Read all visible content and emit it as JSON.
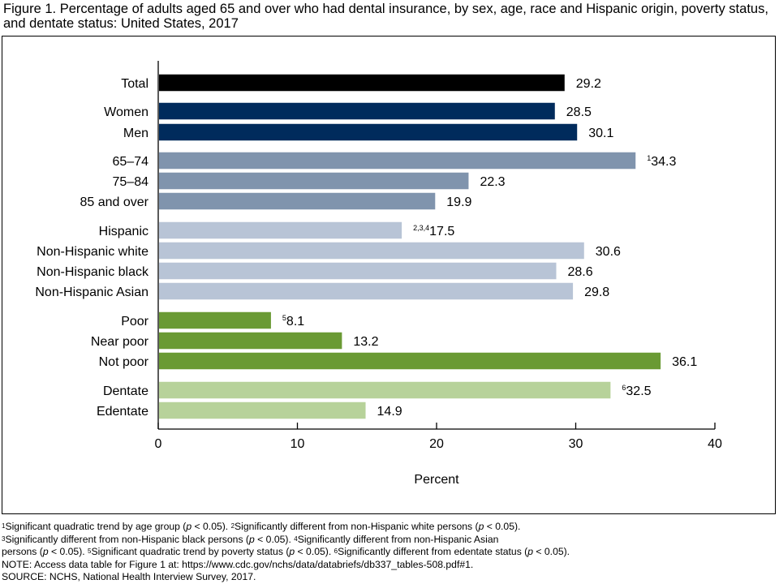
{
  "figure_title": "Figure 1. Percentage of adults aged 65 and over who had dental insurance, by sex, age, race and Hispanic origin, poverty status, and dentate status: United States, 2017",
  "footnotes": {
    "line1": [
      {
        "sup": "1",
        "text": "Significant quadratic trend by age group ("
      },
      {
        "italic": "p"
      },
      {
        "text": " < 0.05). "
      },
      {
        "sup": "2",
        "text": "Significantly different from non-Hispanic white persons ("
      },
      {
        "italic": "p"
      },
      {
        "text": " < 0.05)."
      }
    ],
    "line2": [
      {
        "sup": "3",
        "text": "Significantly different from non-Hispanic black persons ("
      },
      {
        "italic": "p"
      },
      {
        "text": " < 0.05). "
      },
      {
        "sup": "4",
        "text": "Significantly different from non-Hispanic Asian"
      }
    ],
    "line3": [
      {
        "text": "persons ("
      },
      {
        "italic": "p"
      },
      {
        "text": " < 0.05). "
      },
      {
        "sup": "5",
        "text": "Significant quadratic trend by poverty status ("
      },
      {
        "italic": "p"
      },
      {
        "text": " < 0.05). "
      },
      {
        "sup": "6",
        "text": "Significantly different from edentate status ("
      },
      {
        "italic": "p"
      },
      {
        "text": " < 0.05)."
      }
    ],
    "note": "NOTE: Access data table for Figure 1 at: https://www.cdc.gov/nchs/data/databriefs/db337_tables-508.pdf#1.",
    "source": "SOURCE: NCHS, National Health Interview Survey, 2017."
  },
  "chart_data": {
    "type": "bar",
    "orientation": "horizontal",
    "xlabel": "Percent",
    "xlim": [
      0,
      40
    ],
    "xticks": [
      0,
      10,
      20,
      30,
      40
    ],
    "grid": false,
    "categories": [
      {
        "label": "Total",
        "value": 29.2,
        "value_label": "29.2",
        "sup": "",
        "group": "total",
        "color": "#000000"
      },
      {
        "label": "Women",
        "value": 28.5,
        "value_label": "28.5",
        "sup": "",
        "group": "sex",
        "color": "#002b5c"
      },
      {
        "label": "Men",
        "value": 30.1,
        "value_label": "30.1",
        "sup": "",
        "group": "sex",
        "color": "#002b5c"
      },
      {
        "label": "65–74",
        "value": 34.3,
        "value_label": "34.3",
        "sup": "1",
        "group": "age",
        "color": "#8094ad"
      },
      {
        "label": "75–84",
        "value": 22.3,
        "value_label": "22.3",
        "sup": "",
        "group": "age",
        "color": "#8094ad"
      },
      {
        "label": "85 and over",
        "value": 19.9,
        "value_label": "19.9",
        "sup": "",
        "group": "age",
        "color": "#8094ad"
      },
      {
        "label": "Hispanic",
        "value": 17.5,
        "value_label": "17.5",
        "sup": "2,3,4",
        "group": "race",
        "color": "#b8c4d6"
      },
      {
        "label": "Non-Hispanic white",
        "value": 30.6,
        "value_label": "30.6",
        "sup": "",
        "group": "race",
        "color": "#b8c4d6"
      },
      {
        "label": "Non-Hispanic black",
        "value": 28.6,
        "value_label": "28.6",
        "sup": "",
        "group": "race",
        "color": "#b8c4d6"
      },
      {
        "label": "Non-Hispanic Asian",
        "value": 29.8,
        "value_label": "29.8",
        "sup": "",
        "group": "race",
        "color": "#b8c4d6"
      },
      {
        "label": "Poor",
        "value": 8.1,
        "value_label": "8.1",
        "sup": "5",
        "group": "poverty",
        "color": "#6a9a34"
      },
      {
        "label": "Near poor",
        "value": 13.2,
        "value_label": "13.2",
        "sup": "",
        "group": "poverty",
        "color": "#6a9a34"
      },
      {
        "label": "Not poor",
        "value": 36.1,
        "value_label": "36.1",
        "sup": "",
        "group": "poverty",
        "color": "#6a9a34"
      },
      {
        "label": "Dentate",
        "value": 32.5,
        "value_label": "32.5",
        "sup": "6",
        "group": "dentate",
        "color": "#b7d29a"
      },
      {
        "label": "Edentate",
        "value": 14.9,
        "value_label": "14.9",
        "sup": "",
        "group": "dentate",
        "color": "#b7d29a"
      }
    ]
  }
}
